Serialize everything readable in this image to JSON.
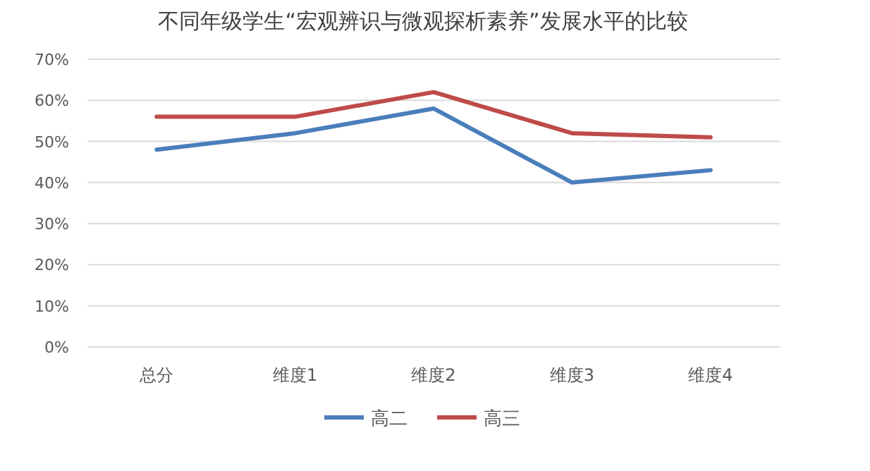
{
  "chart_data": {
    "type": "line",
    "title": "不同年级学生“宏观辨识与微观探析素养”发展水平的比较",
    "categories": [
      "总分",
      "维度1",
      "维度2",
      "维度3",
      "维度4"
    ],
    "series": [
      {
        "name": "高二",
        "color": "#4a7ebb",
        "values": [
          48,
          52,
          58,
          40,
          43
        ]
      },
      {
        "name": "高三",
        "color": "#be4b48",
        "values": [
          56,
          56,
          62,
          52,
          51
        ]
      }
    ],
    "ylim": [
      0,
      70
    ],
    "yticks": [
      {
        "value": 0,
        "label": "0%"
      },
      {
        "value": 10,
        "label": "10%"
      },
      {
        "value": 20,
        "label": "20%"
      },
      {
        "value": 30,
        "label": "30%"
      },
      {
        "value": 40,
        "label": "40%"
      },
      {
        "value": 50,
        "label": "50%"
      },
      {
        "value": 60,
        "label": "60%"
      },
      {
        "value": 70,
        "label": "70%"
      }
    ],
    "grid": "y",
    "legend": "bottom",
    "marker": "none",
    "line_style": "solid"
  }
}
